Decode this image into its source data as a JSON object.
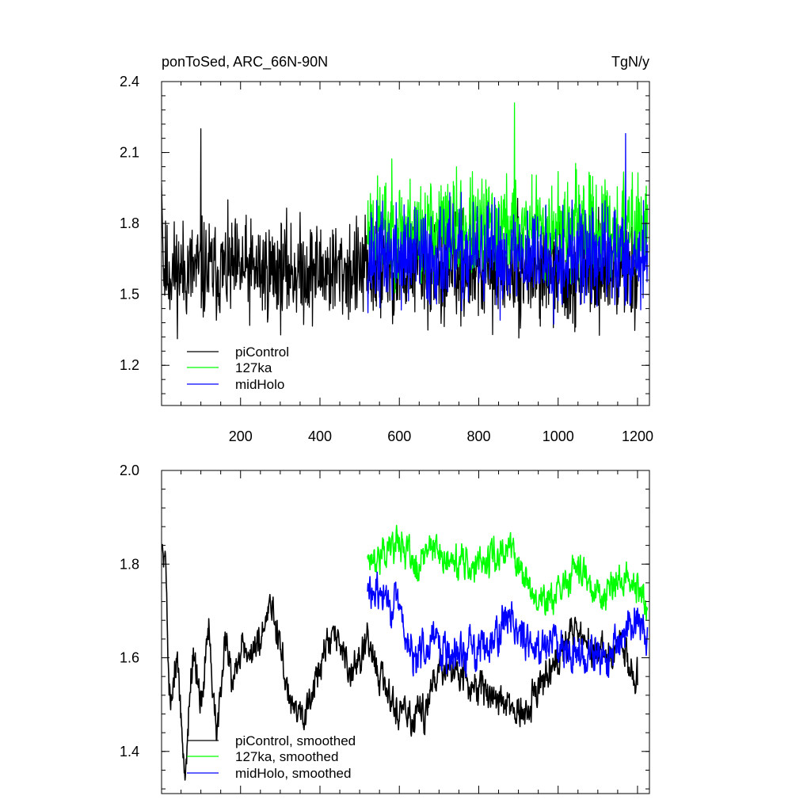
{
  "chart_data": [
    {
      "type": "line",
      "title_left": "ponToSed, ARC_66N-90N",
      "title_right": "TgN/y",
      "xlim": [
        1,
        1230
      ],
      "ylim": [
        1.03,
        2.4
      ],
      "x_ticks": [
        200,
        400,
        600,
        800,
        1000,
        1200
      ],
      "y_ticks": [
        1.2,
        1.5,
        1.8,
        2.1,
        2.4
      ],
      "y_tick_labels": [
        "1.2",
        "1.5",
        "1.8",
        "2.1",
        "2.4"
      ],
      "legend_position": "lower-left",
      "series": [
        {
          "name": "piControl",
          "color": "#000000",
          "x_range": [
            1,
            1200
          ],
          "mean": 1.6,
          "spread": 0.15,
          "amplitude_peak": [
            100,
            2.2
          ],
          "seed": 11
        },
        {
          "name": "127ka",
          "color": "#00ff00",
          "x_range": [
            520,
            1225
          ],
          "mean": 1.78,
          "spread": 0.15,
          "amplitude_peak": [
            890,
            2.31
          ],
          "seed": 23
        },
        {
          "name": "midHolo",
          "color": "#0000ff",
          "x_range": [
            520,
            1225
          ],
          "mean": 1.66,
          "spread": 0.15,
          "amplitude_peak": [
            1170,
            2.18
          ],
          "seed": 37
        }
      ]
    },
    {
      "type": "line",
      "xlim": [
        1,
        1230
      ],
      "ylim": [
        1.31,
        2.0
      ],
      "x_ticks": [
        200,
        400,
        600,
        800,
        1000,
        1200
      ],
      "y_ticks": [
        1.4,
        1.6,
        1.8,
        2.0
      ],
      "y_tick_labels": [
        "1.4",
        "1.6",
        "1.8",
        "2.0"
      ],
      "legend_position": "lower-left",
      "series": [
        {
          "name": "piControl, smoothed",
          "color": "#000000",
          "x_range": [
            1,
            1200
          ],
          "anchors": [
            [
              1,
              1.84
            ],
            [
              10,
              1.83
            ],
            [
              20,
              1.52
            ],
            [
              40,
              1.6
            ],
            [
              60,
              1.36
            ],
            [
              80,
              1.62
            ],
            [
              100,
              1.5
            ],
            [
              120,
              1.66
            ],
            [
              140,
              1.44
            ],
            [
              160,
              1.62
            ],
            [
              180,
              1.55
            ],
            [
              200,
              1.62
            ],
            [
              240,
              1.6
            ],
            [
              280,
              1.72
            ],
            [
              320,
              1.52
            ],
            [
              360,
              1.48
            ],
            [
              400,
              1.58
            ],
            [
              440,
              1.65
            ],
            [
              480,
              1.56
            ],
            [
              520,
              1.64
            ],
            [
              540,
              1.59
            ],
            [
              580,
              1.5
            ],
            [
              620,
              1.47
            ],
            [
              660,
              1.48
            ],
            [
              700,
              1.58
            ],
            [
              760,
              1.56
            ],
            [
              800,
              1.53
            ],
            [
              840,
              1.52
            ],
            [
              880,
              1.5
            ],
            [
              920,
              1.47
            ],
            [
              960,
              1.55
            ],
            [
              1000,
              1.6
            ],
            [
              1040,
              1.66
            ],
            [
              1080,
              1.63
            ],
            [
              1120,
              1.6
            ],
            [
              1160,
              1.62
            ],
            [
              1200,
              1.54
            ]
          ],
          "noise": 0.055,
          "seed": 5
        },
        {
          "name": "127ka, smoothed",
          "color": "#00ff00",
          "x_range": [
            520,
            1225
          ],
          "anchors": [
            [
              520,
              1.82
            ],
            [
              560,
              1.82
            ],
            [
              600,
              1.86
            ],
            [
              640,
              1.78
            ],
            [
              680,
              1.84
            ],
            [
              720,
              1.8
            ],
            [
              760,
              1.81
            ],
            [
              800,
              1.79
            ],
            [
              840,
              1.82
            ],
            [
              880,
              1.84
            ],
            [
              920,
              1.76
            ],
            [
              960,
              1.72
            ],
            [
              1000,
              1.73
            ],
            [
              1040,
              1.79
            ],
            [
              1080,
              1.76
            ],
            [
              1120,
              1.73
            ],
            [
              1160,
              1.77
            ],
            [
              1200,
              1.75
            ],
            [
              1225,
              1.7
            ]
          ],
          "noise": 0.05,
          "seed": 17
        },
        {
          "name": "midHolo, smoothed",
          "color": "#0000ff",
          "x_range": [
            520,
            1225
          ],
          "anchors": [
            [
              520,
              1.74
            ],
            [
              560,
              1.73
            ],
            [
              600,
              1.7
            ],
            [
              640,
              1.58
            ],
            [
              680,
              1.66
            ],
            [
              720,
              1.6
            ],
            [
              760,
              1.61
            ],
            [
              800,
              1.62
            ],
            [
              840,
              1.65
            ],
            [
              880,
              1.7
            ],
            [
              920,
              1.62
            ],
            [
              960,
              1.63
            ],
            [
              1000,
              1.64
            ],
            [
              1040,
              1.62
            ],
            [
              1080,
              1.6
            ],
            [
              1120,
              1.6
            ],
            [
              1160,
              1.63
            ],
            [
              1200,
              1.69
            ],
            [
              1225,
              1.65
            ]
          ],
          "noise": 0.06,
          "seed": 29
        }
      ]
    }
  ]
}
